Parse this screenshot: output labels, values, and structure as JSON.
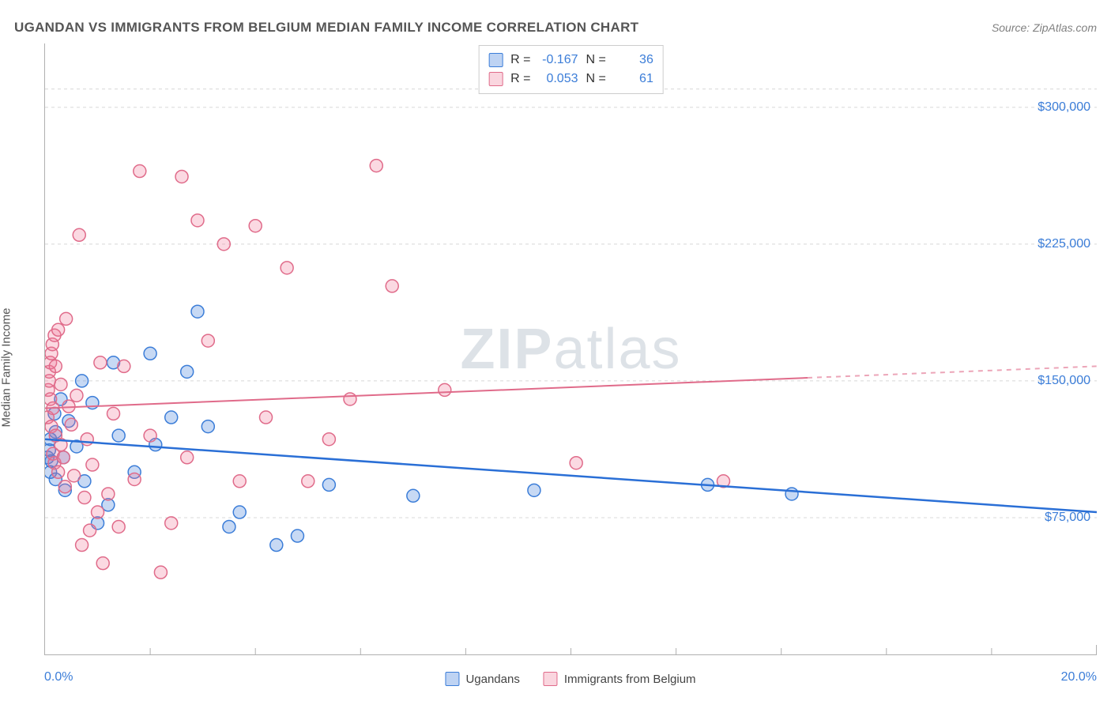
{
  "title": "UGANDAN VS IMMIGRANTS FROM BELGIUM MEDIAN FAMILY INCOME CORRELATION CHART",
  "source": "Source: ZipAtlas.com",
  "watermark_a": "ZIP",
  "watermark_b": "atlas",
  "chart": {
    "type": "scatter",
    "ylabel": "Median Family Income",
    "xlim": [
      0,
      20
    ],
    "ylim": [
      0,
      335000
    ],
    "x_tick_positions": [
      0,
      2,
      4,
      6,
      8,
      10,
      12,
      14,
      16,
      18,
      20
    ],
    "x_label_min": "0.0%",
    "x_label_max": "20.0%",
    "y_ticks": [
      75000,
      150000,
      225000,
      300000
    ],
    "y_tick_labels": [
      "$75,000",
      "$150,000",
      "$225,000",
      "$300,000"
    ],
    "gridline_at_top": 310000,
    "grid_color": "#d8d8d8",
    "grid_dash": "4,4",
    "background_color": "#ffffff",
    "axis_color": "#b0b0b0",
    "point_radius": 8,
    "point_stroke_width": 1.5,
    "series": [
      {
        "name": "Ugandans",
        "fill": "rgba(70,130,220,0.30)",
        "stroke": "#3b7dd8",
        "R": "-0.167",
        "N": "36",
        "trend": {
          "y_at_x0": 118000,
          "y_at_x20": 78000,
          "color": "#2a6fd6",
          "width": 2.5
        },
        "points": [
          [
            0.05,
            108000
          ],
          [
            0.08,
            112000
          ],
          [
            0.1,
            100000
          ],
          [
            0.1,
            118000
          ],
          [
            0.12,
            106000
          ],
          [
            0.18,
            132000
          ],
          [
            0.2,
            96000
          ],
          [
            0.2,
            122000
          ],
          [
            0.3,
            140000
          ],
          [
            0.35,
            108000
          ],
          [
            0.38,
            90000
          ],
          [
            0.45,
            128000
          ],
          [
            0.6,
            114000
          ],
          [
            0.7,
            150000
          ],
          [
            0.75,
            95000
          ],
          [
            0.9,
            138000
          ],
          [
            1.0,
            72000
          ],
          [
            1.2,
            82000
          ],
          [
            1.3,
            160000
          ],
          [
            1.4,
            120000
          ],
          [
            1.7,
            100000
          ],
          [
            2.0,
            165000
          ],
          [
            2.1,
            115000
          ],
          [
            2.4,
            130000
          ],
          [
            2.7,
            155000
          ],
          [
            2.9,
            188000
          ],
          [
            3.1,
            125000
          ],
          [
            3.5,
            70000
          ],
          [
            3.7,
            78000
          ],
          [
            4.4,
            60000
          ],
          [
            4.8,
            65000
          ],
          [
            5.4,
            93000
          ],
          [
            7.0,
            87000
          ],
          [
            9.3,
            90000
          ],
          [
            12.6,
            93000
          ],
          [
            14.2,
            88000
          ]
        ]
      },
      {
        "name": "Immigrants from Belgium",
        "fill": "rgba(240,120,150,0.28)",
        "stroke": "#e06b8a",
        "R": "0.053",
        "N": "61",
        "trend": {
          "y_at_x0": 135000,
          "y_at_x20": 158000,
          "dashed_from_x": 14.5,
          "color": "#e06b8a",
          "width": 2
        },
        "points": [
          [
            0.05,
            130000
          ],
          [
            0.06,
            145000
          ],
          [
            0.08,
            150000
          ],
          [
            0.08,
            155000
          ],
          [
            0.1,
            160000
          ],
          [
            0.1,
            140000
          ],
          [
            0.12,
            165000
          ],
          [
            0.12,
            125000
          ],
          [
            0.14,
            170000
          ],
          [
            0.15,
            110000
          ],
          [
            0.15,
            135000
          ],
          [
            0.18,
            105000
          ],
          [
            0.18,
            175000
          ],
          [
            0.2,
            120000
          ],
          [
            0.2,
            158000
          ],
          [
            0.25,
            100000
          ],
          [
            0.25,
            178000
          ],
          [
            0.3,
            115000
          ],
          [
            0.3,
            148000
          ],
          [
            0.35,
            108000
          ],
          [
            0.38,
            92000
          ],
          [
            0.4,
            184000
          ],
          [
            0.45,
            136000
          ],
          [
            0.5,
            126000
          ],
          [
            0.55,
            98000
          ],
          [
            0.6,
            142000
          ],
          [
            0.65,
            230000
          ],
          [
            0.7,
            60000
          ],
          [
            0.75,
            86000
          ],
          [
            0.8,
            118000
          ],
          [
            0.85,
            68000
          ],
          [
            0.9,
            104000
          ],
          [
            1.0,
            78000
          ],
          [
            1.05,
            160000
          ],
          [
            1.1,
            50000
          ],
          [
            1.2,
            88000
          ],
          [
            1.3,
            132000
          ],
          [
            1.4,
            70000
          ],
          [
            1.5,
            158000
          ],
          [
            1.7,
            96000
          ],
          [
            1.8,
            265000
          ],
          [
            2.0,
            120000
          ],
          [
            2.2,
            45000
          ],
          [
            2.4,
            72000
          ],
          [
            2.6,
            262000
          ],
          [
            2.7,
            108000
          ],
          [
            2.9,
            238000
          ],
          [
            3.1,
            172000
          ],
          [
            3.4,
            225000
          ],
          [
            3.7,
            95000
          ],
          [
            4.0,
            235000
          ],
          [
            4.2,
            130000
          ],
          [
            4.6,
            212000
          ],
          [
            5.0,
            95000
          ],
          [
            5.4,
            118000
          ],
          [
            5.8,
            140000
          ],
          [
            6.3,
            268000
          ],
          [
            6.6,
            202000
          ],
          [
            7.6,
            145000
          ],
          [
            10.1,
            105000
          ],
          [
            12.9,
            95000
          ]
        ]
      }
    ],
    "stats_labels": {
      "R": "R =",
      "N": "N ="
    },
    "legend_labels": [
      "Ugandans",
      "Immigrants from Belgium"
    ]
  }
}
